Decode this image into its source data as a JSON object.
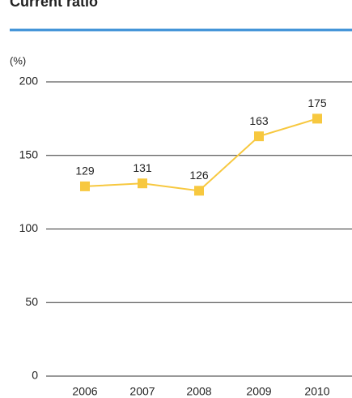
{
  "chart_data": {
    "type": "line",
    "title": "Current ratio",
    "y_unit": "(%)",
    "categories": [
      "2006",
      "2007",
      "2008",
      "2009",
      "2010"
    ],
    "series": [
      {
        "name": "Current ratio",
        "color": "#f7c83f",
        "values": [
          129,
          131,
          126,
          163,
          175
        ]
      }
    ],
    "ylim": [
      0,
      200
    ],
    "yticks": [
      0,
      50,
      100,
      150,
      200
    ],
    "grid": true
  }
}
